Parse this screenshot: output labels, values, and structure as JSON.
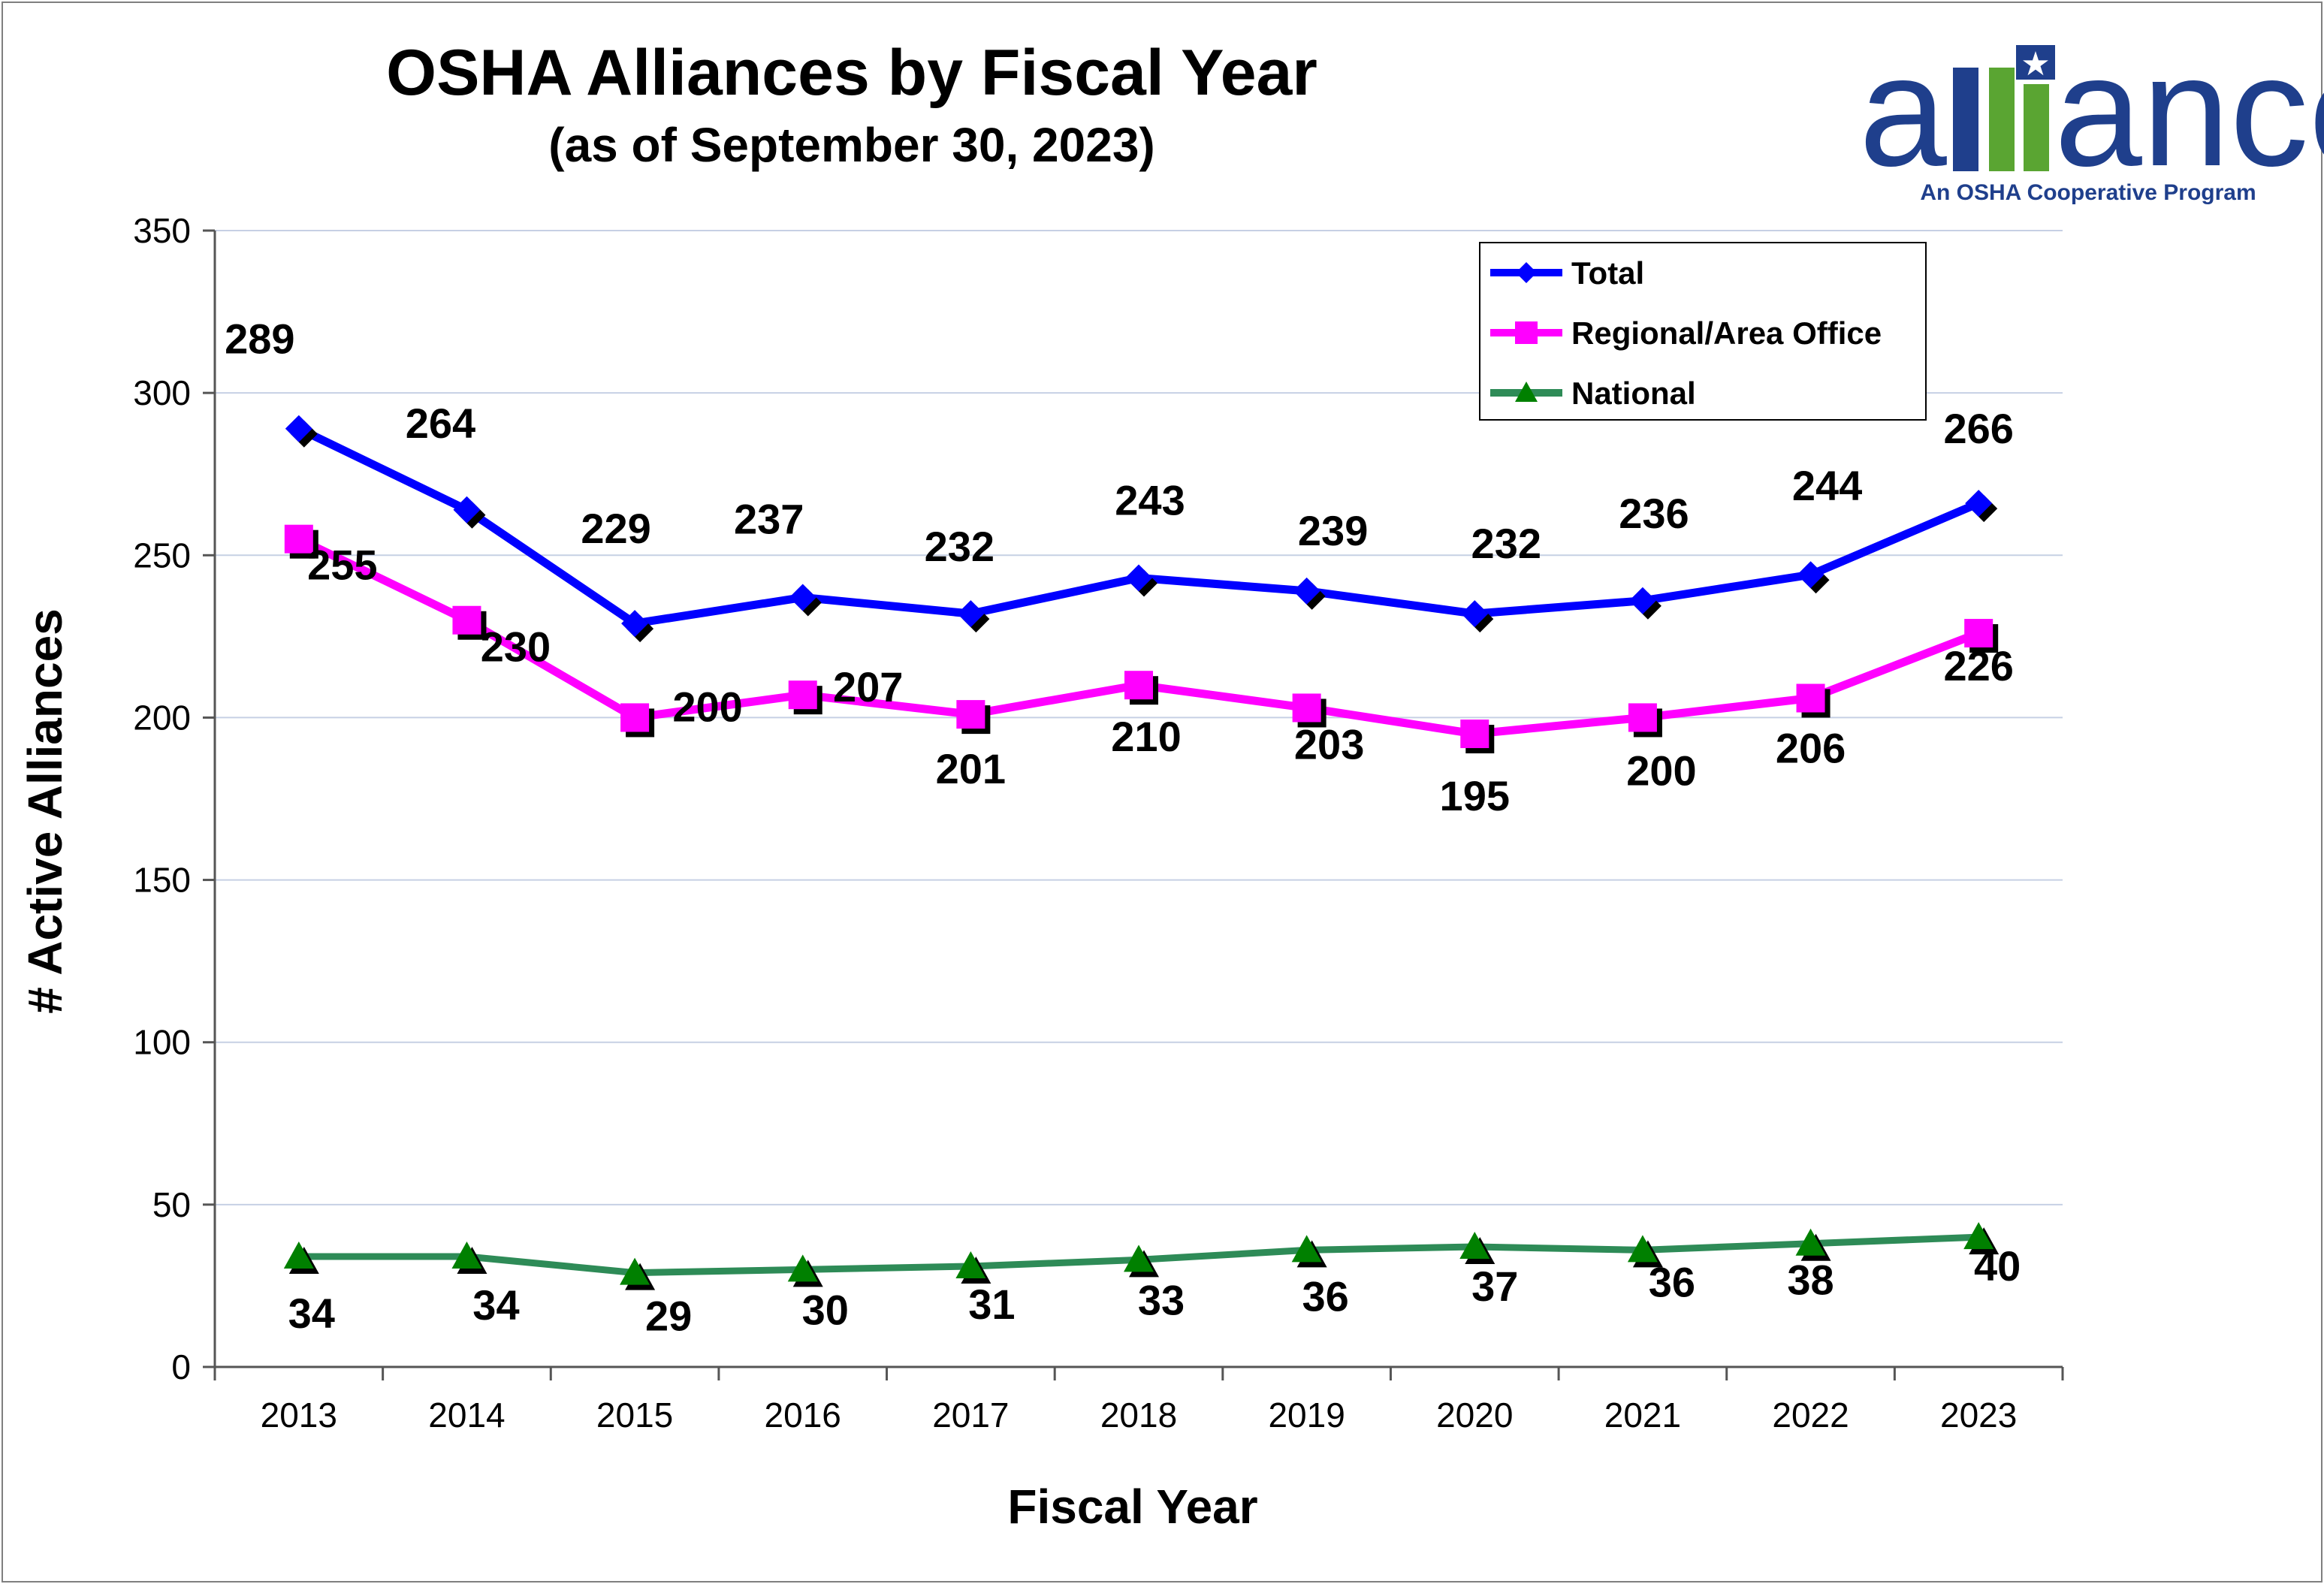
{
  "chart_data": {
    "type": "line",
    "title": "OSHA Alliances by Fiscal Year",
    "subtitle": "(as of September 30, 2023)",
    "xlabel": "Fiscal Year",
    "ylabel": "# Active Alliances",
    "ylim": [
      0,
      350
    ],
    "yticks": [
      0,
      50,
      100,
      150,
      200,
      250,
      300,
      350
    ],
    "grid": true,
    "legend_position": "top-right",
    "categories": [
      "2013",
      "2014",
      "2015",
      "2016",
      "2017",
      "2018",
      "2019",
      "2020",
      "2021",
      "2022",
      "2023"
    ],
    "series": [
      {
        "name": "Total",
        "color": "#0000ff",
        "marker": "diamond",
        "values": [
          289,
          264,
          229,
          237,
          232,
          243,
          239,
          232,
          236,
          244,
          266
        ]
      },
      {
        "name": "Regional/Area Office",
        "color": "#ff00ff",
        "marker": "square",
        "values": [
          255,
          230,
          200,
          207,
          201,
          210,
          203,
          195,
          200,
          206,
          226
        ]
      },
      {
        "name": "National",
        "color": "#2e8b57",
        "marker_color": "#008000",
        "marker": "triangle",
        "values": [
          34,
          34,
          29,
          30,
          31,
          33,
          36,
          37,
          36,
          38,
          40
        ]
      }
    ]
  },
  "logo": {
    "text": "alliance",
    "tagline": "An OSHA Cooperative Program",
    "colors": {
      "blue": "#1f3f8c",
      "green": "#5aa532"
    }
  }
}
